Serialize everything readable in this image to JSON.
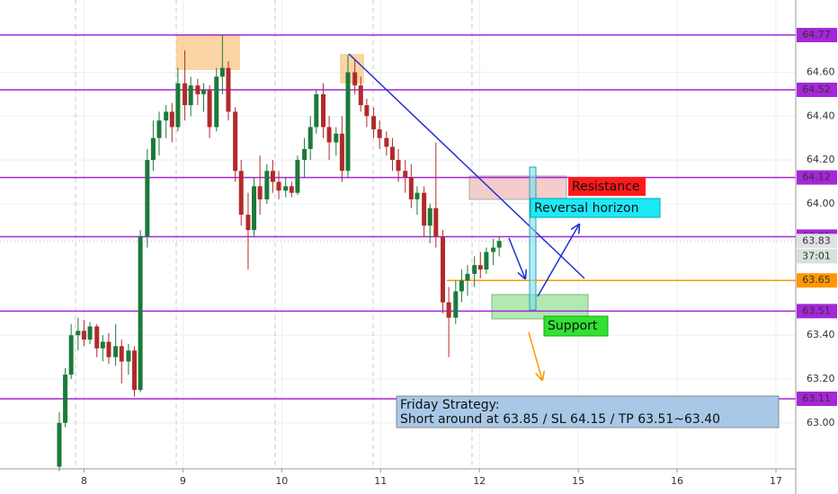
{
  "chart_data": {
    "type": "candlestick",
    "up_color": "#1b7a3a",
    "down_color": "#b22a2a",
    "x": [
      7.75,
      7.81,
      7.87,
      7.94,
      8.0,
      8.06,
      8.13,
      8.19,
      8.25,
      8.32,
      8.38,
      8.45,
      8.51,
      8.57,
      8.64,
      8.7,
      8.76,
      8.83,
      8.89,
      8.95,
      9.02,
      9.08,
      9.15,
      9.21,
      9.27,
      9.34,
      9.4,
      9.46,
      9.53,
      9.59,
      9.66,
      9.72,
      9.78,
      9.85,
      9.91,
      9.97,
      10.04,
      10.1,
      10.16,
      10.23,
      10.29,
      10.35,
      10.42,
      10.48,
      10.55,
      10.61,
      10.67,
      10.74,
      10.8,
      10.86,
      10.93,
      10.99,
      11.06,
      11.12,
      11.18,
      11.25,
      11.31,
      11.37,
      11.44,
      11.5,
      11.56,
      11.63,
      11.69,
      11.76,
      11.82,
      11.88,
      11.95,
      12.01,
      12.07,
      12.14,
      12.2
    ],
    "open": [
      62.8,
      63.0,
      63.22,
      63.4,
      63.42,
      63.38,
      63.44,
      63.34,
      63.37,
      63.3,
      63.35,
      63.28,
      63.33,
      63.15,
      63.85,
      64.2,
      64.3,
      64.38,
      64.42,
      64.35,
      64.55,
      64.45,
      64.54,
      64.5,
      64.52,
      64.35,
      64.58,
      64.62,
      64.42,
      64.15,
      63.95,
      63.88,
      64.08,
      64.02,
      64.15,
      64.1,
      64.06,
      64.08,
      64.05,
      64.2,
      64.25,
      64.35,
      64.5,
      64.35,
      64.28,
      64.32,
      64.15,
      64.6,
      64.54,
      64.45,
      64.4,
      64.34,
      64.3,
      64.26,
      64.2,
      64.15,
      64.12,
      64.02,
      64.05,
      63.9,
      63.98,
      63.85,
      63.55,
      63.48,
      63.6,
      63.65,
      63.68,
      63.72,
      63.7,
      63.78,
      63.8
    ],
    "high": [
      63.05,
      63.25,
      63.45,
      63.48,
      63.47,
      63.46,
      63.45,
      63.4,
      63.41,
      63.45,
      63.38,
      63.36,
      63.35,
      63.88,
      64.25,
      64.38,
      64.42,
      64.45,
      64.46,
      64.62,
      64.7,
      64.58,
      64.57,
      64.55,
      64.54,
      64.62,
      64.77,
      64.65,
      64.44,
      64.2,
      64.05,
      64.12,
      64.22,
      64.18,
      64.2,
      64.15,
      64.12,
      64.1,
      64.22,
      64.3,
      64.4,
      64.52,
      64.55,
      64.4,
      64.35,
      64.4,
      64.68,
      64.66,
      64.58,
      64.48,
      64.44,
      64.38,
      64.33,
      64.3,
      64.25,
      64.2,
      64.18,
      64.08,
      64.08,
      64.0,
      64.28,
      63.88,
      63.62,
      63.65,
      63.7,
      63.72,
      63.76,
      63.78,
      63.8,
      63.84,
      63.85
    ],
    "low": [
      62.78,
      62.98,
      63.2,
      63.33,
      63.35,
      63.36,
      63.3,
      63.28,
      63.27,
      63.26,
      63.18,
      63.22,
      63.12,
      63.14,
      63.8,
      64.15,
      64.22,
      64.3,
      64.28,
      64.33,
      64.38,
      64.4,
      64.45,
      64.42,
      64.3,
      64.33,
      64.5,
      64.38,
      64.1,
      63.9,
      63.7,
      63.85,
      63.95,
      64.0,
      64.05,
      64.02,
      64.03,
      64.03,
      64.04,
      64.12,
      64.2,
      64.32,
      64.3,
      64.2,
      64.22,
      64.1,
      64.12,
      64.5,
      64.42,
      64.35,
      64.3,
      64.25,
      64.22,
      64.15,
      64.1,
      64.05,
      63.98,
      63.95,
      63.85,
      63.82,
      63.8,
      63.5,
      63.3,
      63.45,
      63.55,
      63.58,
      63.62,
      63.66,
      63.68,
      63.72,
      63.76
    ],
    "close": [
      63.0,
      63.22,
      63.4,
      63.42,
      63.38,
      63.44,
      63.34,
      63.37,
      63.3,
      63.35,
      63.28,
      63.33,
      63.15,
      63.85,
      64.2,
      64.3,
      64.38,
      64.42,
      64.35,
      64.55,
      64.45,
      64.54,
      64.5,
      64.52,
      64.35,
      64.58,
      64.62,
      64.42,
      64.15,
      63.95,
      63.88,
      64.08,
      64.02,
      64.15,
      64.1,
      64.06,
      64.08,
      64.05,
      64.2,
      64.25,
      64.35,
      64.5,
      64.35,
      64.28,
      64.32,
      64.15,
      64.6,
      64.54,
      64.45,
      64.4,
      64.34,
      64.3,
      64.26,
      64.2,
      64.15,
      64.12,
      64.02,
      64.05,
      63.9,
      63.98,
      63.85,
      63.55,
      63.48,
      63.6,
      63.65,
      63.68,
      63.72,
      63.7,
      63.78,
      63.8,
      63.83
    ],
    "xlim": [
      7.15,
      15.2
    ],
    "ylim": [
      62.79,
      64.93
    ],
    "xticks": [
      8,
      9,
      10,
      11,
      12,
      {
        "value": 13,
        "label": "15"
      },
      {
        "value": 14,
        "label": "16"
      },
      {
        "value": 15,
        "label": "17"
      }
    ],
    "yticks": [
      {
        "value": 64.6,
        "label": "64.60"
      },
      {
        "value": 64.4,
        "label": "64.40"
      },
      {
        "value": 64.2,
        "label": "64.20"
      },
      {
        "value": 64.0,
        "label": "64.00"
      },
      {
        "value": 63.4,
        "label": "63.40"
      },
      {
        "value": 63.2,
        "label": "63.20"
      },
      {
        "value": 63.0,
        "label": "63.00"
      }
    ],
    "grid": true,
    "levels": [
      {
        "value": 64.77,
        "color": "#a626d8"
      },
      {
        "value": 64.52,
        "color": "#a626d8"
      },
      {
        "value": 64.12,
        "color": "#a626d8"
      },
      {
        "value": 63.85,
        "color": "#a626d8"
      },
      {
        "value": 63.51,
        "color": "#a626d8"
      },
      {
        "value": 63.11,
        "color": "#a626d8"
      }
    ],
    "entry_level": {
      "value": 63.65,
      "color": "#ff9800"
    },
    "last_price": 63.83,
    "countdown": "37:01",
    "annotations": {
      "resistance": "Resistance",
      "reversal": "Reversal horizon",
      "support": "Support",
      "strategy": [
        "Friday Strategy:",
        "Short around at 63.85 / SL 64.15 / TP 63.51~63.40"
      ]
    }
  }
}
